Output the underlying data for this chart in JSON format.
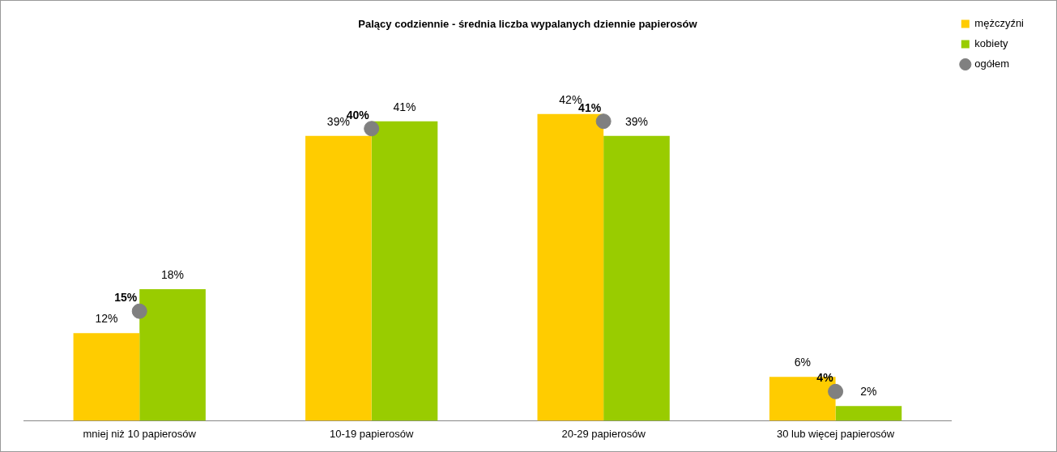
{
  "chart_data": {
    "type": "bar",
    "title": "Palący codziennie - średnia liczba wypalanych dziennie papierosów",
    "categories": [
      "mniej niż 10 papierosów",
      "10-19 papierosów",
      "20-29 papierosów",
      "30 lub więcej papierosów"
    ],
    "series": [
      {
        "name": "mężczyźni",
        "color": "#ffcc00",
        "values": [
          12,
          39,
          42,
          6
        ],
        "value_labels": [
          "12%",
          "39%",
          "42%",
          "6%"
        ]
      },
      {
        "name": "kobiety",
        "color": "#99cc00",
        "values": [
          18,
          41,
          39,
          2
        ],
        "value_labels": [
          "18%",
          "41%",
          "39%",
          "2%"
        ]
      },
      {
        "name": "ogółem",
        "type": "scatter",
        "color": "#808080",
        "marker": "circle",
        "x": [
          "mniej niż 10 papierosów",
          "10-19 papierosów",
          "20-29 papierosów",
          "30 lub więcej papierosów"
        ],
        "values": [
          15,
          40,
          41,
          4
        ],
        "value_labels": [
          "15%",
          "40%",
          "41%",
          "4%"
        ]
      }
    ],
    "legend": "top right",
    "grid": false
  }
}
